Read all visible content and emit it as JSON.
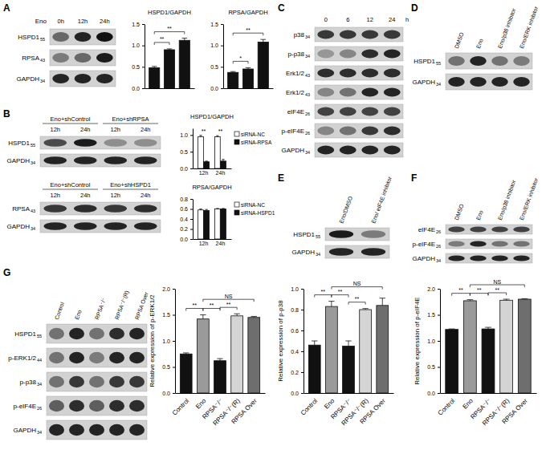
{
  "chart_data": [
    {
      "type": "bar",
      "title": "HSPD1/GAPDH",
      "categories": [
        null,
        null,
        null
      ],
      "values": [
        0.48,
        0.9,
        1.12
      ],
      "errors": [
        0.03,
        0.02,
        0.05
      ],
      "color": "#111111",
      "ylim": [
        0,
        1.5
      ],
      "yticks": [
        {
          "value": 0,
          "label": "0.0"
        },
        {
          "value": 0.5,
          "label": "0.5"
        },
        {
          "value": 1,
          "label": "1.0"
        },
        {
          "value": 1.5,
          "label": "1.5"
        }
      ],
      "annotations": [
        {
          "from": 0,
          "to": 1,
          "text": "**"
        },
        {
          "from": 0,
          "to": 2,
          "text": "**"
        }
      ]
    },
    {
      "type": "bar",
      "title": "RPSA/GAPDH",
      "categories": [
        null,
        null,
        null
      ],
      "values": [
        0.37,
        0.45,
        1.08
      ],
      "errors": [
        0.02,
        0.03,
        0.06
      ],
      "color": "#111111",
      "ylim": [
        0,
        1.5
      ],
      "yticks": [
        {
          "value": 0,
          "label": "0.0"
        },
        {
          "value": 0.5,
          "label": "0.5"
        },
        {
          "value": 1,
          "label": "1.0"
        },
        {
          "value": 1.5,
          "label": "1.5"
        }
      ],
      "annotations": [
        {
          "from": 0,
          "to": 1,
          "text": "*"
        },
        {
          "from": 0,
          "to": 2,
          "text": "**"
        }
      ]
    },
    {
      "type": "bar",
      "title": "HSPD1/GAPDH",
      "categories": [
        "12h",
        "24h"
      ],
      "series": [
        {
          "name": "siRNA-NC",
          "color": "#ffffff",
          "values": [
            0.95,
            0.95
          ],
          "errors": [
            0.04,
            0.03
          ]
        },
        {
          "name": "siRNA-RPSA",
          "color": "#111111",
          "values": [
            0.2,
            0.22
          ],
          "errors": [
            0.02,
            0.05
          ]
        }
      ],
      "ylim": [
        0,
        1.2
      ],
      "yticks": [
        {
          "value": 0,
          "label": "0.0"
        },
        {
          "value": 0.5,
          "label": "0.5"
        },
        {
          "value": 1,
          "label": "1.0"
        }
      ],
      "legend": "right",
      "annotations": [
        {
          "at": 0,
          "text": "**"
        },
        {
          "at": 1,
          "text": "**"
        }
      ]
    },
    {
      "type": "bar",
      "title": "RPSA/GAPDH",
      "categories": [
        "12h",
        "24h"
      ],
      "series": [
        {
          "name": "siRNA-NC",
          "color": "#ffffff",
          "values": [
            0.58,
            0.6
          ],
          "errors": [
            0.02,
            0.01
          ]
        },
        {
          "name": "siRNA-HSPD1",
          "color": "#111111",
          "values": [
            0.57,
            0.6
          ],
          "errors": [
            0.02,
            0.01
          ]
        }
      ],
      "ylim": [
        0,
        0.8
      ],
      "yticks": [
        {
          "value": 0,
          "label": "0.0"
        },
        {
          "value": 0.2,
          "label": "0.2"
        },
        {
          "value": 0.4,
          "label": "0.4"
        },
        {
          "value": 0.6,
          "label": "0.6"
        },
        {
          "value": 0.8,
          "label": "0.8"
        }
      ],
      "legend": "right"
    },
    {
      "type": "bar",
      "y_label": "Relative expression of p-ERK1/2",
      "categories": [
        "Control",
        "Eno",
        "RPSA⁻/⁻",
        "RPSA⁻/⁻(R)",
        "RPSA Over"
      ],
      "values": [
        0.75,
        1.42,
        0.62,
        1.48,
        1.45
      ],
      "errors": [
        0.02,
        0.08,
        0.04,
        0.04,
        0.02
      ],
      "colors": [
        "#111111",
        "#9a9a9a",
        "#111111",
        "#d4d4d4",
        "#6e6e6e"
      ],
      "ylim": [
        0,
        2
      ],
      "yticks": [
        {
          "value": 0,
          "label": "0.0"
        },
        {
          "value": 0.5,
          "label": "0.5"
        },
        {
          "value": 1,
          "label": "1.0"
        },
        {
          "value": 1.5,
          "label": "1.5"
        },
        {
          "value": 2,
          "label": "2.0"
        }
      ],
      "annotations": [
        {
          "from": 0,
          "to": 1,
          "text": "**"
        },
        {
          "from": 1,
          "to": 2,
          "text": "**"
        },
        {
          "from": 2,
          "to": 3,
          "text": "**"
        },
        {
          "from": 1,
          "to": 4,
          "text": "NS"
        }
      ]
    },
    {
      "type": "bar",
      "y_label": "Relative expression of p-p38",
      "categories": [
        "Control",
        "Eno",
        "RPSA⁻/⁻",
        "RPSA⁻/⁻(R)",
        "RPSA Over"
      ],
      "values": [
        0.46,
        0.83,
        0.45,
        0.8,
        0.84
      ],
      "errors": [
        0.04,
        0.05,
        0.05,
        0.01,
        0.07
      ],
      "colors": [
        "#111111",
        "#9a9a9a",
        "#111111",
        "#d4d4d4",
        "#6e6e6e"
      ],
      "ylim": [
        0,
        1
      ],
      "yticks": [
        {
          "value": 0,
          "label": "0.0"
        },
        {
          "value": 0.2,
          "label": "0.2"
        },
        {
          "value": 0.4,
          "label": "0.4"
        },
        {
          "value": 0.6,
          "label": "0.6"
        },
        {
          "value": 0.8,
          "label": "0.8"
        },
        {
          "value": 1,
          "label": "1.0"
        }
      ],
      "annotations": [
        {
          "from": 0,
          "to": 1,
          "text": "**"
        },
        {
          "from": 1,
          "to": 2,
          "text": "**"
        },
        {
          "from": 2,
          "to": 3,
          "text": "**"
        },
        {
          "from": 1,
          "to": 4,
          "text": "NS"
        }
      ]
    },
    {
      "type": "bar",
      "y_label": "Relative expression of p-eIF4E",
      "categories": [
        "Control",
        "Eno",
        "RPSA⁻/⁻",
        "RPSA⁻/⁻(R)",
        "RPSA Over"
      ],
      "values": [
        1.22,
        1.77,
        1.23,
        1.78,
        1.8
      ],
      "errors": [
        0.01,
        0.02,
        0.03,
        0.02,
        0.01
      ],
      "colors": [
        "#111111",
        "#9a9a9a",
        "#111111",
        "#d4d4d4",
        "#6e6e6e"
      ],
      "ylim": [
        0,
        2
      ],
      "yticks": [
        {
          "value": 0,
          "label": "0.0"
        },
        {
          "value": 0.5,
          "label": "0.5"
        },
        {
          "value": 1,
          "label": "1.0"
        },
        {
          "value": 1.5,
          "label": "1.5"
        },
        {
          "value": 2,
          "label": "2.0"
        }
      ],
      "annotations": [
        {
          "from": 0,
          "to": 1,
          "text": "**"
        },
        {
          "from": 1,
          "to": 2,
          "text": "**"
        },
        {
          "from": 2,
          "to": 3,
          "text": "**"
        },
        {
          "from": 1,
          "to": 4,
          "text": "NS"
        }
      ]
    }
  ],
  "panels": [
    {
      "label": "A",
      "blots": [
        {
          "header_label": "Eno",
          "lanes": [
            "0h",
            "12h",
            "24h"
          ],
          "rows": [
            {
              "label": "HSPD1",
              "mw": 55,
              "bands": [
                0.55,
                0.9,
                1.0
              ]
            },
            {
              "label": "RPSA",
              "mw": 43,
              "bands": [
                0.45,
                0.55,
                0.95
              ]
            },
            {
              "label": "GAPDH",
              "mw": 34,
              "bands": [
                0.9,
                0.9,
                0.9
              ]
            }
          ]
        }
      ]
    },
    {
      "label": "B",
      "blots": [
        {
          "groups": [
            "Eno+shControl",
            "Eno+shRPSA"
          ],
          "lanes": [
            "12h",
            "24h",
            "12h",
            "24h"
          ],
          "rows": [
            {
              "label": "HSPD1",
              "mw": 55,
              "bands": [
                0.7,
                0.95,
                0.35,
                0.35
              ]
            },
            {
              "label": "GAPDH",
              "mw": 34,
              "bands": [
                0.9,
                0.9,
                0.9,
                0.9
              ]
            }
          ]
        },
        {
          "groups": [
            "Eno+shControl",
            "Eno+shHSPD1"
          ],
          "lanes": [
            "12h",
            "24h",
            "12h",
            "24h"
          ],
          "rows": [
            {
              "label": "RPSA",
              "mw": 43,
              "bands": [
                0.8,
                0.85,
                0.8,
                0.85
              ]
            },
            {
              "label": "GAPDH",
              "mw": 34,
              "bands": [
                0.9,
                0.9,
                0.9,
                0.9
              ]
            }
          ]
        }
      ]
    },
    {
      "label": "C",
      "blots": [
        {
          "lanes": [
            0,
            6,
            12,
            24
          ],
          "lane_unit": "h",
          "rows": [
            {
              "label": "p38",
              "mw": 34,
              "bands": [
                0.8,
                0.8,
                0.8,
                0.8
              ]
            },
            {
              "label": "p-p38",
              "mw": 34,
              "bands": [
                0.3,
                0.4,
                0.85,
                0.9
              ]
            },
            {
              "label": "Erk1/2",
              "mw": 43,
              "bands": [
                0.85,
                0.85,
                0.85,
                0.85
              ]
            },
            {
              "label": "Erk1/2",
              "mw": 43,
              "bands": [
                0.4,
                0.5,
                0.9,
                0.9
              ]
            },
            {
              "label": "eIF4E",
              "mw": 26,
              "bands": [
                0.75,
                0.75,
                0.75,
                0.75
              ]
            },
            {
              "label": "p-eIF4E",
              "mw": 26,
              "bands": [
                0.4,
                0.5,
                0.8,
                0.85
              ]
            },
            {
              "label": "GAPDH",
              "mw": 34,
              "bands": [
                0.9,
                0.9,
                0.9,
                0.9
              ]
            }
          ]
        }
      ]
    },
    {
      "label": "D",
      "blots": [
        {
          "lanes": [
            "DMSO",
            "Eno",
            "Eno/p38 inhibitor",
            "Eno/ERK inhibitor"
          ],
          "rows": [
            {
              "label": "HSPD1",
              "mw": 55,
              "bands": [
                0.5,
                0.9,
                0.5,
                0.45
              ]
            },
            {
              "label": "GAPDH",
              "mw": 34,
              "bands": [
                0.9,
                0.9,
                0.9,
                0.9
              ]
            }
          ]
        }
      ]
    },
    {
      "label": "E",
      "blots": [
        {
          "lanes": [
            "Eno/DMSO",
            "Eno/ eIF4E inhibitor"
          ],
          "rows": [
            {
              "label": "HSPD1",
              "mw": 55,
              "bands": [
                0.95,
                0.45
              ]
            },
            {
              "label": "GAPDH",
              "mw": 34,
              "bands": [
                0.9,
                0.9
              ]
            }
          ]
        }
      ]
    },
    {
      "label": "F",
      "blots": [
        {
          "lanes": [
            "DMSO",
            "Eno",
            "Eno/p38 inhibitor",
            "Eno/ERK inhibitor"
          ],
          "rows": [
            {
              "label": "eIF4E",
              "mw": 26,
              "bands": [
                0.75,
                0.75,
                0.75,
                0.75
              ]
            },
            {
              "label": "p-eIF4E",
              "mw": 26,
              "bands": [
                0.45,
                0.9,
                0.5,
                0.5
              ]
            },
            {
              "label": "GAPDH",
              "mw": 34,
              "bands": [
                0.9,
                0.9,
                0.9,
                0.9
              ]
            }
          ]
        }
      ]
    },
    {
      "label": "G",
      "blots": [
        {
          "lanes": [
            "Control",
            "Eno",
            "RPSA⁻/⁻",
            "RPSA⁻/⁻(R)",
            "RPSA Over"
          ],
          "rows": [
            {
              "label": "HSPD1",
              "mw": 55,
              "bands": [
                0.5,
                0.9,
                0.5,
                0.85,
                0.9
              ]
            },
            {
              "label": "p-ERK1/2",
              "mw": 44,
              "bands": [
                0.5,
                0.9,
                0.45,
                0.9,
                0.9
              ]
            },
            {
              "label": "p-p38",
              "mw": 34,
              "bands": [
                0.5,
                0.8,
                0.5,
                0.8,
                0.8
              ]
            },
            {
              "label": "p-eIF4E",
              "mw": 26,
              "bands": [
                0.6,
                0.85,
                0.6,
                0.85,
                0.85
              ]
            },
            {
              "label": "GAPDH",
              "mw": 34,
              "bands": [
                0.9,
                0.9,
                0.9,
                0.9,
                0.9
              ]
            }
          ]
        }
      ]
    }
  ]
}
